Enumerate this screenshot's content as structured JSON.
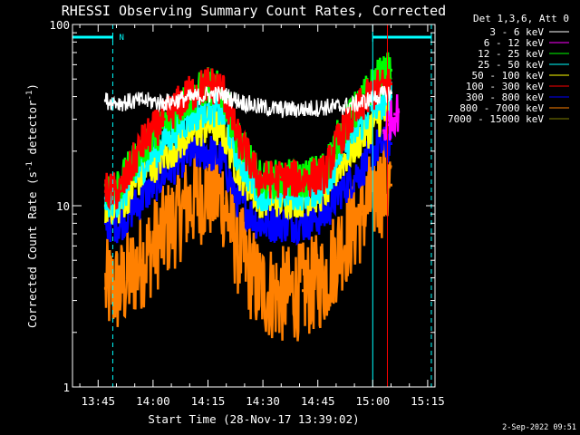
{
  "chart_data": {
    "type": "line",
    "title": "RHESSI Observing Summary Count Rates, Corrected",
    "xlabel": "Start Time (28-Nov-17 13:39:02)",
    "ylabel_main": "Corrected Count Rate (s",
    "ylabel_sup1": "-1",
    "ylabel_mid": " detector",
    "ylabel_sup2": "-1",
    "ylabel_end": ")",
    "y_scale": "log",
    "ylim": [
      1,
      100
    ],
    "xlim_min": [
      -1,
      98
    ],
    "x_ticks": [
      {
        "t": 6,
        "label": "13:45"
      },
      {
        "t": 21,
        "label": "14:00"
      },
      {
        "t": 36,
        "label": "14:15"
      },
      {
        "t": 51,
        "label": "14:30"
      },
      {
        "t": 66,
        "label": "14:45"
      },
      {
        "t": 81,
        "label": "15:00"
      },
      {
        "t": 96,
        "label": "15:15"
      }
    ],
    "y_ticks": [
      {
        "v": 1,
        "label": "1"
      },
      {
        "v": 10,
        "label": "10"
      },
      {
        "v": 100,
        "label": "100"
      }
    ],
    "legend_header": "Det 1,3,6, Att 0",
    "legend_position": "top-right outside",
    "series": [
      {
        "name": "3 - 6 keV",
        "color": "#ffffff",
        "x": [
          8,
          12,
          18,
          24,
          30,
          36,
          40,
          44,
          50,
          56,
          62,
          68,
          72,
          78,
          82,
          86
        ],
        "y": [
          38,
          37,
          38,
          37,
          39,
          41,
          41,
          38,
          35,
          34,
          34,
          35,
          35,
          37,
          40,
          42
        ]
      },
      {
        "name": "6 - 12 keV",
        "color": "#ff00ff",
        "x": [
          84,
          85,
          86,
          87,
          88
        ],
        "y": [
          26,
          28,
          30,
          32,
          33
        ]
      },
      {
        "name": "12 - 25 keV",
        "color": "#00ff00",
        "x": [
          8,
          12,
          18,
          24,
          30,
          36,
          40,
          44,
          50,
          56,
          62,
          68,
          72,
          78,
          82,
          86
        ],
        "y": [
          13,
          13,
          21,
          28,
          38,
          46,
          42,
          24,
          14,
          14,
          14,
          16,
          25,
          38,
          50,
          56
        ]
      },
      {
        "name": "25 - 50 keV",
        "color": "#00ffff",
        "x": [
          8,
          12,
          18,
          24,
          30,
          36,
          40,
          44,
          50,
          56,
          62,
          68,
          72,
          78,
          82,
          86
        ],
        "y": [
          11,
          11,
          17,
          23,
          30,
          36,
          33,
          19,
          12,
          12,
          12,
          13,
          20,
          29,
          37,
          40
        ]
      },
      {
        "name": "50 - 100 keV",
        "color": "#ffff00",
        "x": [
          8,
          12,
          18,
          24,
          30,
          36,
          40,
          44,
          50,
          56,
          62,
          68,
          72,
          78,
          82,
          86
        ],
        "y": [
          10,
          10,
          15,
          19,
          24,
          28,
          26,
          16,
          11,
          11,
          11,
          12,
          17,
          24,
          30,
          33
        ]
      },
      {
        "name": "100 - 300 keV",
        "color": "#ff0000",
        "x": [
          8,
          12,
          18,
          24,
          30,
          36,
          40,
          44,
          50,
          56,
          62,
          68,
          72,
          78,
          82,
          86
        ],
        "y": [
          12,
          12,
          22,
          30,
          40,
          47,
          44,
          24,
          14,
          14,
          14,
          15,
          24,
          36,
          44,
          47
        ]
      },
      {
        "name": "300 - 800 keV",
        "color": "#0000ff",
        "x": [
          8,
          12,
          18,
          24,
          30,
          36,
          40,
          44,
          50,
          56,
          62,
          68,
          72,
          78,
          82,
          86
        ],
        "y": [
          8,
          8,
          11,
          15,
          19,
          20,
          18,
          11,
          8,
          8,
          8,
          9,
          12,
          16,
          21,
          22
        ]
      },
      {
        "name": "800 - 7000 keV",
        "color": "#ff8000",
        "x": [
          8,
          12,
          18,
          24,
          30,
          36,
          40,
          44,
          50,
          56,
          62,
          68,
          72,
          78,
          82,
          86
        ],
        "y": [
          3.5,
          3.5,
          5,
          7,
          10,
          12,
          11,
          6,
          3.5,
          3.2,
          3.4,
          4,
          6,
          9,
          12,
          13
        ]
      },
      {
        "name": "7000 - 15000 keV",
        "color": "#808000",
        "x": [],
        "y": []
      }
    ],
    "annotations": {
      "flag_label": "N",
      "flag_color": "#00ffff",
      "flag_segments": [
        [
          -1,
          10
        ],
        [
          81,
          97
        ]
      ],
      "dashed_lines_t": [
        10,
        97
      ],
      "solid_lines": [
        {
          "t": 81,
          "color": "#00ffff"
        },
        {
          "t": 85,
          "color": "#ff0000"
        }
      ]
    }
  },
  "footer": {
    "timestamp": "2-Sep-2022 09:51"
  }
}
